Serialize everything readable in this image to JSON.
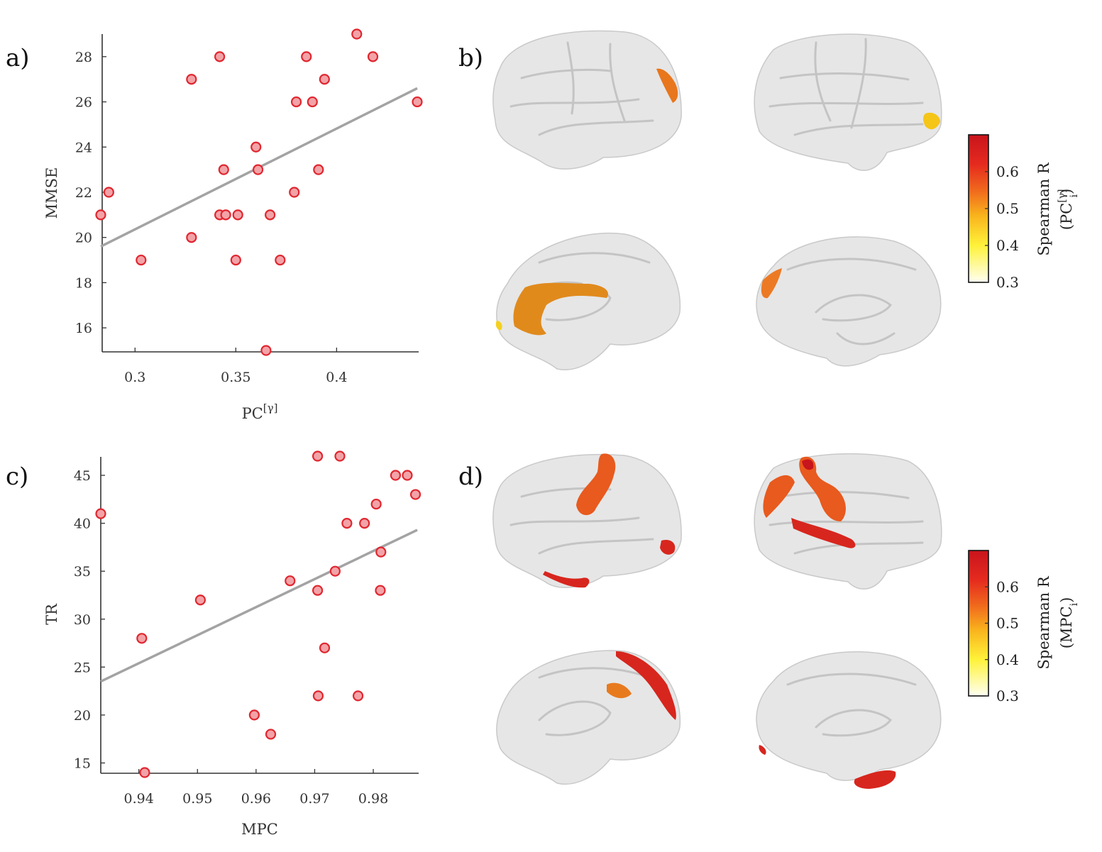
{
  "panels": {
    "a": {
      "label": "a)",
      "chart_data": {
        "type": "scatter",
        "title": "",
        "xlabel": "PC",
        "xlabel_superscript": "[γ]",
        "ylabel": "MMSE",
        "xlim": [
          0.283,
          0.44
        ],
        "ylim": [
          15,
          29
        ],
        "xticks": [
          0.3,
          0.35,
          0.4
        ],
        "xtick_labels": [
          "0.3",
          "0.35",
          "0.4"
        ],
        "yticks": [
          16,
          18,
          20,
          22,
          24,
          26,
          28
        ],
        "ytick_labels": [
          "16",
          "18",
          "20",
          "22",
          "24",
          "26",
          "28"
        ],
        "x": [
          0.283,
          0.287,
          0.303,
          0.328,
          0.328,
          0.342,
          0.342,
          0.344,
          0.345,
          0.35,
          0.351,
          0.36,
          0.361,
          0.365,
          0.367,
          0.372,
          0.379,
          0.38,
          0.385,
          0.388,
          0.391,
          0.394,
          0.41,
          0.418,
          0.44
        ],
        "y": [
          21,
          22,
          19,
          27,
          20,
          28,
          21,
          23,
          21,
          19,
          21,
          24,
          23,
          15,
          21,
          19,
          22,
          26,
          28,
          26,
          23,
          27,
          29,
          28,
          26
        ],
        "fit_line": {
          "x": [
            0.283,
            0.44
          ],
          "y": [
            19.6,
            26.6
          ]
        },
        "grid": false
      }
    },
    "c": {
      "label": "c)",
      "chart_data": {
        "type": "scatter",
        "title": "",
        "xlabel": "MPC",
        "ylabel": "TR",
        "xlim": [
          0.9335,
          0.9875
        ],
        "ylim": [
          14,
          47
        ],
        "xticks": [
          0.94,
          0.95,
          0.96,
          0.97,
          0.98
        ],
        "xtick_labels": [
          "0.94",
          "0.95",
          "0.96",
          "0.97",
          "0.98"
        ],
        "yticks": [
          15,
          20,
          25,
          30,
          35,
          40,
          45
        ],
        "ytick_labels": [
          "15",
          "20",
          "25",
          "30",
          "35",
          "40",
          "45"
        ],
        "x": [
          0.9335,
          0.9405,
          0.941,
          0.9505,
          0.9597,
          0.9625,
          0.9658,
          0.9705,
          0.9705,
          0.9706,
          0.9717,
          0.9735,
          0.9743,
          0.9755,
          0.9774,
          0.9785,
          0.9805,
          0.9812,
          0.9813,
          0.9838,
          0.9858,
          0.9872
        ],
        "y": [
          41,
          28,
          14,
          32,
          20,
          18,
          34,
          47,
          33,
          22,
          27,
          35,
          47,
          40,
          22,
          40,
          42,
          33,
          37,
          45,
          45,
          43
        ],
        "fit_line": {
          "x": [
            0.9335,
            0.9875
          ],
          "y": [
            23.5,
            39.3
          ]
        },
        "grid": false
      }
    },
    "b": {
      "label": "b)",
      "colorbar": {
        "title": "Spearman R",
        "subtitle_main": "(PC",
        "subtitle_sup": "[γ]",
        "subtitle_sub": "i",
        "subtitle_close": ")",
        "ticks": [
          "0.3",
          "0.4",
          "0.5",
          "0.6"
        ],
        "range": [
          0.3,
          0.7
        ]
      },
      "views": [
        "left-lateral",
        "right-lateral",
        "left-medial",
        "right-medial"
      ],
      "highlight_color": "#e8761c"
    },
    "d": {
      "label": "d)",
      "colorbar": {
        "title": "Spearman R",
        "subtitle_main": "(MPC",
        "subtitle_sup": "",
        "subtitle_sub": "i",
        "subtitle_close": ")",
        "ticks": [
          "0.3",
          "0.4",
          "0.5",
          "0.6"
        ],
        "range": [
          0.3,
          0.7
        ]
      },
      "views": [
        "left-lateral",
        "right-lateral",
        "left-medial",
        "right-medial"
      ],
      "highlight_color": "#e64a1e"
    }
  },
  "colors": {
    "point_fill": "#f2a3a7",
    "point_edge": "#e0262f",
    "fit_line": "#a3a3a3",
    "brain": "#e6e6e6",
    "colormap": [
      "#fffff2",
      "#ffe81c",
      "#f7941d",
      "#ed3a1d",
      "#d7191c"
    ]
  }
}
